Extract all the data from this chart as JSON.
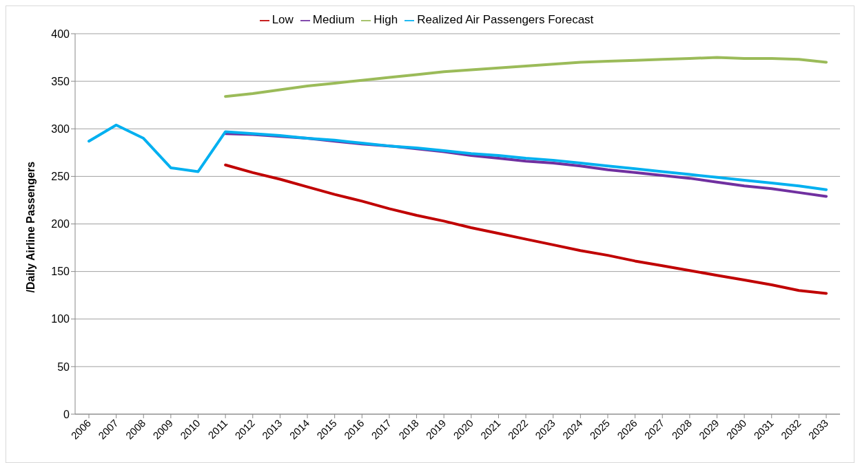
{
  "chart_data": {
    "type": "line",
    "ylabel": "/Daily Airline Passengers",
    "categories": [
      "2006",
      "2007",
      "2008",
      "2009",
      "2010",
      "2011",
      "2012",
      "2013",
      "2014",
      "2015",
      "2016",
      "2017",
      "2018",
      "2019",
      "2020",
      "2021",
      "2022",
      "2023",
      "2024",
      "2025",
      "2026",
      "2027",
      "2028",
      "2029",
      "2030",
      "2031",
      "2032",
      "2033"
    ],
    "series": [
      {
        "name": "Low",
        "color": "#c00000",
        "values": [
          null,
          null,
          null,
          null,
          null,
          262,
          254,
          247,
          239,
          231,
          224,
          216,
          209,
          203,
          196,
          190,
          184,
          178,
          172,
          167,
          161,
          156,
          151,
          146,
          141,
          136,
          130,
          127
        ]
      },
      {
        "name": "Medium",
        "color": "#7030a0",
        "values": [
          null,
          null,
          null,
          null,
          null,
          295,
          294,
          292,
          290,
          287,
          284,
          282,
          279,
          276,
          272,
          269,
          266,
          264,
          261,
          257,
          254,
          251,
          248,
          244,
          240,
          237,
          233,
          229
        ]
      },
      {
        "name": "High",
        "color": "#9bbb59",
        "values": [
          null,
          null,
          null,
          null,
          null,
          334,
          337,
          341,
          345,
          348,
          351,
          354,
          357,
          360,
          362,
          364,
          366,
          368,
          370,
          371,
          372,
          373,
          374,
          375,
          374,
          374,
          373,
          370
        ]
      },
      {
        "name": "Realized Air Passengers Forecast",
        "color": "#00b0f0",
        "values": [
          287,
          304,
          290,
          259,
          255,
          297,
          295,
          293,
          290,
          288,
          285,
          282,
          280,
          277,
          274,
          272,
          269,
          267,
          264,
          261,
          258,
          255,
          252,
          249,
          246,
          243,
          240,
          236
        ]
      }
    ],
    "ylim": [
      0,
      400
    ],
    "yticks": [
      0,
      50,
      100,
      150,
      200,
      250,
      300,
      350,
      400
    ],
    "grid": "y",
    "legend": "top",
    "marker": "none",
    "line_style": "solid"
  }
}
